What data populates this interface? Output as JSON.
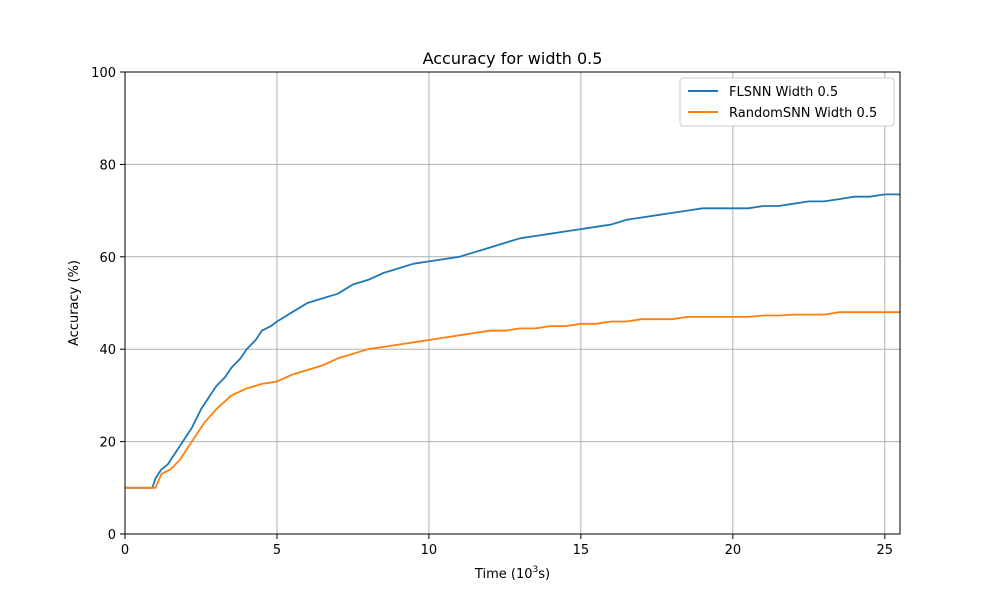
{
  "chart_data": {
    "type": "line",
    "title": "Accuracy for width 0.5",
    "xlabel_main": "Time (10",
    "xlabel_sup": "3",
    "xlabel_tail": "s)",
    "ylabel": "Accuracy (%)",
    "xlim": [
      0,
      25.5
    ],
    "ylim": [
      0,
      100
    ],
    "xticks": [
      0,
      5,
      10,
      15,
      20,
      25
    ],
    "yticks": [
      0,
      20,
      40,
      60,
      80,
      100
    ],
    "grid": true,
    "legend_position": "top-right",
    "series": [
      {
        "name": "FLSNN Width 0.5",
        "color": "#1f77b4",
        "x": [
          0,
          0.9,
          1.0,
          1.2,
          1.4,
          1.6,
          1.8,
          2.0,
          2.2,
          2.5,
          2.8,
          3.0,
          3.3,
          3.5,
          3.8,
          4.0,
          4.3,
          4.5,
          4.8,
          5.0,
          5.5,
          6.0,
          6.5,
          7.0,
          7.5,
          8.0,
          8.5,
          9.0,
          9.5,
          10.0,
          10.5,
          11.0,
          11.5,
          12.0,
          12.5,
          13.0,
          13.5,
          14.0,
          14.5,
          15.0,
          15.5,
          16.0,
          16.5,
          17.0,
          17.5,
          18.0,
          18.5,
          19.0,
          19.5,
          20.0,
          20.5,
          21.0,
          21.5,
          22.0,
          22.5,
          23.0,
          23.5,
          24.0,
          24.5,
          25.0,
          25.5
        ],
        "y": [
          10,
          10,
          12,
          14,
          15,
          17,
          19,
          21,
          23,
          27,
          30,
          32,
          34,
          36,
          38,
          40,
          42,
          44,
          45,
          46,
          48,
          50,
          51,
          52,
          54,
          55,
          56.5,
          57.5,
          58.5,
          59,
          59.5,
          60,
          61,
          62,
          63,
          64,
          64.5,
          65,
          65.5,
          66,
          66.5,
          67,
          68,
          68.5,
          69,
          69.5,
          70,
          70.5,
          70.5,
          70.5,
          70.5,
          71,
          71,
          71.5,
          72,
          72,
          72.5,
          73,
          73,
          73.5,
          73.5
        ]
      },
      {
        "name": "RandomSNN Width 0.5",
        "color": "#ff7f0e",
        "x": [
          0,
          1.0,
          1.2,
          1.5,
          1.8,
          2.0,
          2.3,
          2.6,
          3.0,
          3.5,
          4.0,
          4.5,
          5.0,
          5.5,
          6.0,
          6.5,
          7.0,
          7.5,
          8.0,
          8.5,
          9.0,
          9.5,
          10.0,
          10.5,
          11.0,
          11.5,
          12.0,
          12.5,
          13.0,
          13.5,
          14.0,
          14.5,
          15.0,
          15.5,
          16.0,
          16.5,
          17.0,
          17.5,
          18.0,
          18.5,
          19.0,
          19.5,
          20.0,
          20.5,
          21.0,
          21.5,
          22.0,
          22.5,
          23.0,
          23.5,
          24.0,
          24.5,
          25.0,
          25.5
        ],
        "y": [
          10,
          10,
          13,
          14,
          16,
          18,
          21,
          24,
          27,
          30,
          31.5,
          32.5,
          33,
          34.5,
          35.5,
          36.5,
          38,
          39,
          40,
          40.5,
          41,
          41.5,
          42,
          42.5,
          43,
          43.5,
          44,
          44,
          44.5,
          44.5,
          45,
          45,
          45.5,
          45.5,
          46,
          46,
          46.5,
          46.5,
          46.5,
          47,
          47,
          47,
          47,
          47,
          47.3,
          47.3,
          47.5,
          47.5,
          47.5,
          48,
          48,
          48,
          48,
          48
        ]
      }
    ]
  }
}
